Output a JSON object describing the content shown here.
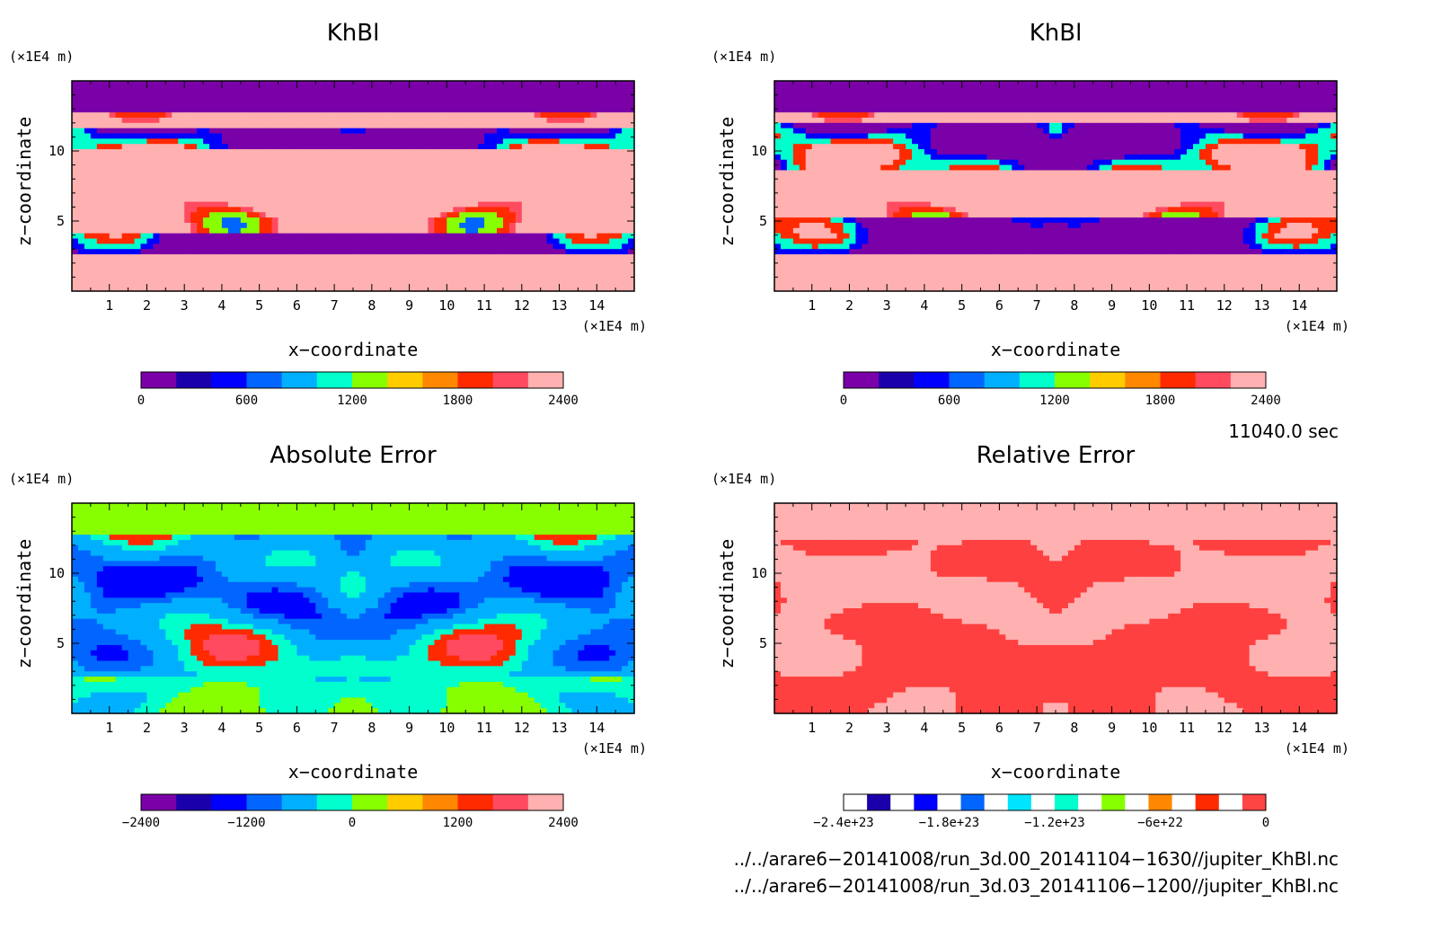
{
  "chart_data": [
    {
      "type": "heatmap",
      "title": "KhBl",
      "xlabel": "x−coordinate",
      "ylabel": "z−coordinate",
      "x_unit": "(×1E4 m)",
      "y_unit": "(×1E4 m)",
      "xlim": [
        0,
        15
      ],
      "ylim": [
        0,
        15
      ],
      "x_ticks": [
        "1",
        "2",
        "3",
        "4",
        "5",
        "6",
        "7",
        "8",
        "9",
        "10",
        "11",
        "12",
        "13",
        "14"
      ],
      "y_ticks": [
        "5",
        "10"
      ],
      "colorbar": {
        "range": [
          0,
          2400
        ],
        "tick_labels": [
          "0",
          "600",
          "1200",
          "1800",
          "2400"
        ],
        "colors": [
          "#7a00a8",
          "#1a00aa",
          "#0000ff",
          "#0066ff",
          "#00b0ff",
          "#00ffcc",
          "#88ff00",
          "#ffcc00",
          "#ff8800",
          "#ff2a00",
          "#ff4a60",
          "#ffb0b0"
        ]
      },
      "pattern": "field_a"
    },
    {
      "type": "heatmap",
      "title": "KhBl",
      "xlabel": "x−coordinate",
      "ylabel": "z−coordinate",
      "x_unit": "(×1E4 m)",
      "y_unit": "(×1E4 m)",
      "xlim": [
        0,
        15
      ],
      "ylim": [
        0,
        15
      ],
      "x_ticks": [
        "1",
        "2",
        "3",
        "4",
        "5",
        "6",
        "7",
        "8",
        "9",
        "10",
        "11",
        "12",
        "13",
        "14"
      ],
      "y_ticks": [
        "5",
        "10"
      ],
      "colorbar": {
        "range": [
          0,
          2400
        ],
        "tick_labels": [
          "0",
          "600",
          "1200",
          "1800",
          "2400"
        ],
        "colors": [
          "#7a00a8",
          "#1a00aa",
          "#0000ff",
          "#0066ff",
          "#00b0ff",
          "#00ffcc",
          "#88ff00",
          "#ffcc00",
          "#ff8800",
          "#ff2a00",
          "#ff4a60",
          "#ffb0b0"
        ]
      },
      "pattern": "field_b"
    },
    {
      "type": "heatmap",
      "title": "Absolute Error",
      "xlabel": "x−coordinate",
      "ylabel": "z−coordinate",
      "x_unit": "(×1E4 m)",
      "y_unit": "(×1E4 m)",
      "xlim": [
        0,
        15
      ],
      "ylim": [
        0,
        15
      ],
      "x_ticks": [
        "1",
        "2",
        "3",
        "4",
        "5",
        "6",
        "7",
        "8",
        "9",
        "10",
        "11",
        "12",
        "13",
        "14"
      ],
      "y_ticks": [
        "5",
        "10"
      ],
      "colorbar": {
        "range": [
          -2400,
          2400
        ],
        "tick_labels": [
          "−2400",
          "−1200",
          "0",
          "1200",
          "2400"
        ],
        "colors": [
          "#7a00a8",
          "#1a00aa",
          "#0000ff",
          "#0066ff",
          "#00b0ff",
          "#00ffcc",
          "#88ff00",
          "#ffcc00",
          "#ff8800",
          "#ff2a00",
          "#ff4a60",
          "#ffb0b0"
        ]
      },
      "pattern": "field_abs"
    },
    {
      "type": "heatmap",
      "title": "Relative Error",
      "xlabel": "x−coordinate",
      "ylabel": "z−coordinate",
      "x_unit": "(×1E4 m)",
      "y_unit": "(×1E4 m)",
      "xlim": [
        0,
        15
      ],
      "ylim": [
        0,
        15
      ],
      "x_ticks": [
        "1",
        "2",
        "3",
        "4",
        "5",
        "6",
        "7",
        "8",
        "9",
        "10",
        "11",
        "12",
        "13",
        "14"
      ],
      "y_ticks": [
        "5",
        "10"
      ],
      "colorbar": {
        "range": [
          -2.4e+23,
          0
        ],
        "tick_labels": [
          "−2.4e+23",
          "−1.8e+23",
          "−1.2e+23",
          "−6e+22",
          "0"
        ],
        "colors": [
          "#ffffff",
          "#1a00aa",
          "#ffffff",
          "#0000ff",
          "#ffffff",
          "#0066ff",
          "#ffffff",
          "#00e5ff",
          "#ffffff",
          "#00ffcc",
          "#ffffff",
          "#88ff00",
          "#ffffff",
          "#ff8800",
          "#ffffff",
          "#ff2a00",
          "#ffffff",
          "#ff4444"
        ]
      },
      "pattern": "field_rel"
    }
  ],
  "time_label": "11040.0 sec",
  "files": [
    "../../arare6−20141008/run_3d.00_20141104−1630//jupiter_KhBl.nc",
    "../../arare6−20141008/run_3d.03_20141106−1200//jupiter_KhBl.nc"
  ]
}
